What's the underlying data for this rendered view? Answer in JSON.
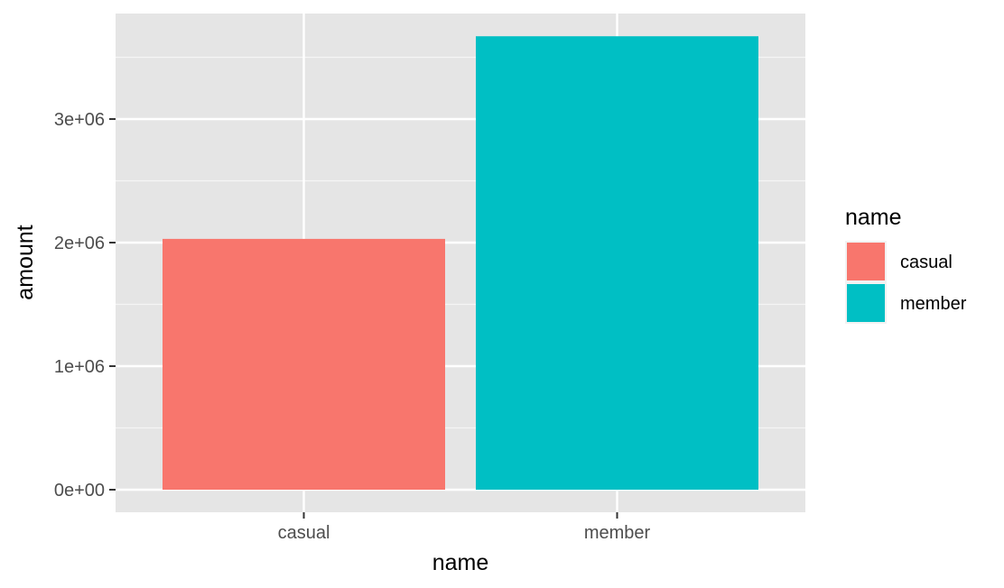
{
  "chart_data": {
    "type": "bar",
    "categories": [
      "casual",
      "member"
    ],
    "values": [
      2030000,
      3670000
    ],
    "xlabel": "name",
    "ylabel": "amount",
    "ylim": [
      0,
      3700000
    ],
    "yticks": [
      0,
      1000000,
      2000000,
      3000000
    ],
    "ytick_labels": [
      "0e+00",
      "1e+06",
      "2e+06",
      "3e+06"
    ],
    "grid": true,
    "legend": {
      "title": "name",
      "placement": "right",
      "entries": [
        "casual",
        "member"
      ]
    },
    "colors": [
      "#F8766D",
      "#00BFC4"
    ],
    "panel_background": "#EBEBEB"
  }
}
